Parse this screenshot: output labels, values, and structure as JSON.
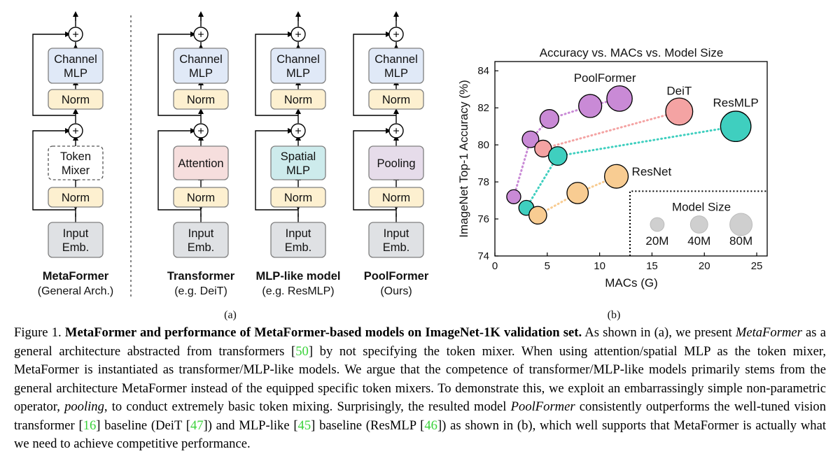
{
  "diagram": {
    "columns": [
      {
        "id": "metaformer",
        "top_block": "Channel\nMLP",
        "norm1": "Norm",
        "mixer": "Token\nMixer",
        "norm2": "Norm",
        "input": "Input\nEmb.",
        "label_bold": "MetaFormer",
        "label_sub": "(General Arch.)",
        "mixer_color": "#ffffff",
        "mixer_dashed": true
      },
      {
        "id": "transformer",
        "top_block": "Channel\nMLP",
        "norm1": "Norm",
        "mixer": "Attention",
        "norm2": "Norm",
        "input": "Input\nEmb.",
        "label_bold": "Transformer",
        "label_sub": "(e.g. DeiT)",
        "mixer_color": "#f6dedd",
        "mixer_dashed": false
      },
      {
        "id": "mlp-like",
        "top_block": "Channel\nMLP",
        "norm1": "Norm",
        "mixer": "Spatial\nMLP",
        "norm2": "Norm",
        "input": "Input\nEmb.",
        "label_bold": "MLP-like model",
        "label_sub": "(e.g. ResMLP)",
        "mixer_color": "#cdebec",
        "mixer_dashed": false
      },
      {
        "id": "poolformer",
        "top_block": "Channel\nMLP",
        "norm1": "Norm",
        "mixer": "Pooling",
        "norm2": "Norm",
        "input": "Input\nEmb.",
        "label_bold": "PoolFormer",
        "label_sub": "(Ours)",
        "mixer_color": "#e6dcea",
        "mixer_dashed": false
      }
    ],
    "colors": {
      "channel_mlp": "#e0e9f7",
      "norm": "#fdf0d0",
      "input": "#dfe1e4"
    },
    "plus_symbol": "+",
    "subfig_label": "(a)"
  },
  "chart_data": {
    "type": "scatter",
    "title": "Accuracy vs. MACs vs. Model Size",
    "xlabel": "MACs (G)",
    "ylabel": "ImageNet Top-1 Accuracy (%)",
    "xlim": [
      0,
      26
    ],
    "ylim": [
      74,
      84.5
    ],
    "xticks": [
      0,
      5,
      10,
      15,
      20,
      25
    ],
    "yticks": [
      74,
      76,
      78,
      80,
      82,
      84
    ],
    "grid": false,
    "series": [
      {
        "name": "PoolFormer",
        "color": "#c98ad6",
        "points": [
          {
            "x": 1.8,
            "y": 77.2,
            "size_m": 12
          },
          {
            "x": 3.4,
            "y": 80.3,
            "size_m": 21
          },
          {
            "x": 5.2,
            "y": 81.4,
            "size_m": 31
          },
          {
            "x": 9.1,
            "y": 82.1,
            "size_m": 56
          },
          {
            "x": 11.9,
            "y": 82.5,
            "size_m": 73
          }
        ]
      },
      {
        "name": "DeiT",
        "color": "#f4a3a3",
        "points": [
          {
            "x": 4.6,
            "y": 79.8,
            "size_m": 22
          },
          {
            "x": 17.6,
            "y": 81.8,
            "size_m": 86
          }
        ]
      },
      {
        "name": "ResMLP",
        "color": "#3fcfbf",
        "points": [
          {
            "x": 3.0,
            "y": 76.6,
            "size_m": 15
          },
          {
            "x": 6.0,
            "y": 79.4,
            "size_m": 30
          },
          {
            "x": 23.0,
            "y": 81.0,
            "size_m": 116
          }
        ]
      },
      {
        "name": "ResNet",
        "color": "#f8cc92",
        "points": [
          {
            "x": 4.1,
            "y": 76.2,
            "size_m": 26
          },
          {
            "x": 7.9,
            "y": 77.4,
            "size_m": 45
          },
          {
            "x": 11.6,
            "y": 78.3,
            "size_m": 60
          }
        ]
      }
    ],
    "legend": {
      "title": "Model Size",
      "entries": [
        "20M",
        "40M",
        "80M"
      ],
      "sizes_m": [
        20,
        40,
        80
      ],
      "color": "#cfcfcf",
      "placement": "bottom-right"
    },
    "subfig_label": "(b)"
  },
  "caption": {
    "figure_label": "Figure 1.",
    "bold_title": "MetaFormer and performance of MetaFormer-based models on ImageNet-1K validation set.",
    "t1": " As shown in (a), we present ",
    "i1": "MetaFormer",
    "t2": " as a general architecture abstracted from transformers [",
    "c1": "50",
    "t3": "] by not specifying the token mixer. When using attention/spatial MLP as the token mixer, MetaFormer is instantiated as transformer/MLP-like models. We argue that the competence of transformer/MLP-like models primarily stems from the general architecture MetaFormer instead of the equipped specific token mixers. To demonstrate this, we exploit an embarrassingly simple non-parametric operator, ",
    "i2": "pooling",
    "t4": ", to conduct extremely basic token mixing. Surprisingly, the resulted model ",
    "i3": "PoolFormer",
    "t5": " consistently outperforms the well-tuned vision transformer [",
    "c2": "16",
    "t6": "] baseline (DeiT [",
    "c3": "47",
    "t7": "]) and MLP-like [",
    "c4": "45",
    "t8": "] baseline (ResMLP [",
    "c5": "46",
    "t9": "]) as shown in (b), which well supports that MetaFormer is actually what we need to achieve competitive performance."
  }
}
